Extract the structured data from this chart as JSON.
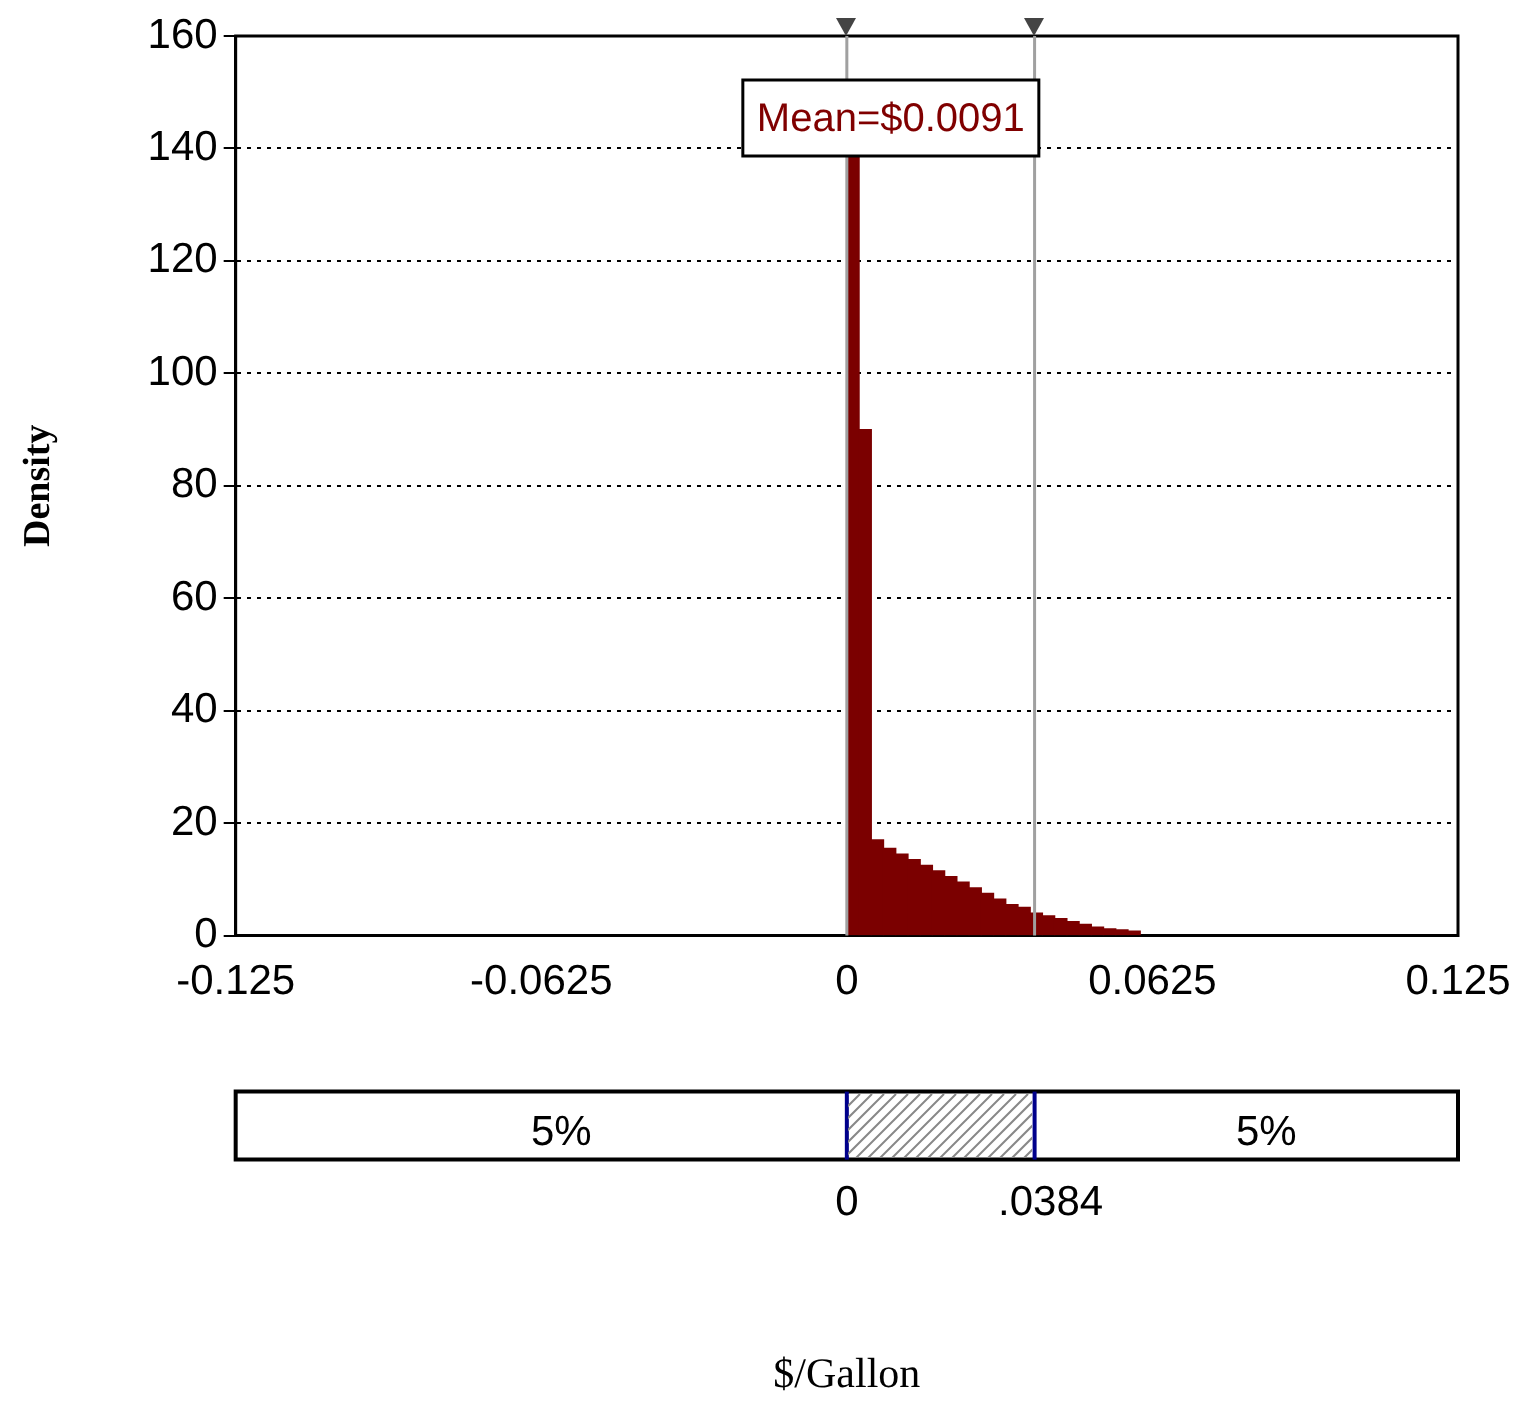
{
  "chart_data": {
    "type": "histogram",
    "ylabel": "Density",
    "bins": [
      0,
      0.0025,
      0.005,
      0.0075,
      0.01,
      0.0125,
      0.015,
      0.0175,
      0.02,
      0.0225,
      0.025,
      0.0275,
      0.03,
      0.0325,
      0.035,
      0.0375,
      0.04,
      0.0425,
      0.045,
      0.0475,
      0.05,
      0.0525,
      0.055,
      0.0575,
      0.06
    ],
    "values": [
      139,
      90,
      17,
      15.5,
      14.5,
      13.5,
      12.5,
      11.5,
      10.5,
      9.5,
      8.5,
      7.5,
      6.5,
      5.5,
      5,
      4,
      3.5,
      3,
      2.5,
      2,
      1.5,
      1.2,
      1,
      0.8
    ],
    "color": "#7b0000",
    "xlim": [
      -0.125,
      0.125
    ],
    "xticks": [
      -0.125,
      -0.0625,
      0,
      0.0625,
      0.125
    ],
    "ylim": [
      0,
      160
    ],
    "yticks": [
      0,
      20,
      40,
      60,
      80,
      100,
      120,
      140,
      160
    ],
    "grid": "y",
    "legend": false,
    "ref_lines": [
      {
        "axis": "x",
        "value": 0,
        "color": "#a0a0a0"
      },
      {
        "axis": "x",
        "value": 0.0384,
        "color": "#a0a0a0"
      }
    ],
    "annotations": [
      "Mean=$0.0091",
      "5%",
      "5%",
      "0",
      ".0384",
      "$/Gallon"
    ]
  }
}
